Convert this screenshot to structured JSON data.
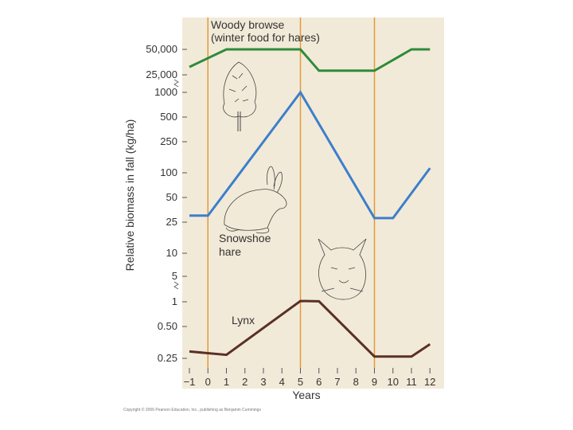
{
  "chart_data": {
    "type": "line",
    "xlabel": "Years",
    "ylabel": "Relative biomass in fall (kg/ha)",
    "x_ticks": [
      "−1",
      "0",
      "1",
      "2",
      "3",
      "4",
      "5",
      "6",
      "7",
      "8",
      "9",
      "10",
      "11",
      "12"
    ],
    "xlim": [
      -1,
      12
    ],
    "y_ticks": [
      "0.25",
      "0.50",
      "1",
      "5",
      "10",
      "25",
      "50",
      "100",
      "250",
      "500",
      "1000",
      "25,000",
      "50,000"
    ],
    "y_tick_values": [
      0.25,
      0.5,
      1,
      5,
      10,
      25,
      50,
      100,
      250,
      500,
      1000,
      25000,
      50000
    ],
    "y_scale": "log (broken axis)",
    "vertical_lines_at_year": [
      0,
      5,
      9
    ],
    "series": [
      {
        "name": "Woody browse",
        "label": [
          "Woody browse",
          "(winter food for hares)"
        ],
        "color": "#2e8b3a",
        "points": [
          [
            -1,
            31000
          ],
          [
            1,
            50000
          ],
          [
            5,
            50000
          ],
          [
            6,
            28000
          ],
          [
            9,
            28000
          ],
          [
            11,
            50000
          ],
          [
            12,
            50000
          ]
        ]
      },
      {
        "name": "Snowshoe hare",
        "label": [
          "Snowshoe",
          "hare"
        ],
        "color": "#3c7fcc",
        "points": [
          [
            -1,
            30
          ],
          [
            0,
            30
          ],
          [
            5,
            1000
          ],
          [
            9,
            28
          ],
          [
            10,
            28
          ],
          [
            12,
            115
          ]
        ]
      },
      {
        "name": "Lynx",
        "label": [
          "Lynx"
        ],
        "color": "#5a3025",
        "points": [
          [
            -1,
            0.29
          ],
          [
            1,
            0.27
          ],
          [
            5,
            1.05
          ],
          [
            6,
            1.03
          ],
          [
            9,
            0.26
          ],
          [
            11,
            0.26
          ],
          [
            12,
            0.34
          ]
        ]
      }
    ],
    "illustrations": [
      "tree-illustration",
      "snowshoe-hare-illustration",
      "lynx-illustration"
    ],
    "colors": {
      "plot_background": "#f2ead8",
      "vertical_lines": "#e09a3c"
    }
  },
  "copyright": "Copyright © 2006 Pearson Education, Inc., publishing as Benjamin Cummings"
}
